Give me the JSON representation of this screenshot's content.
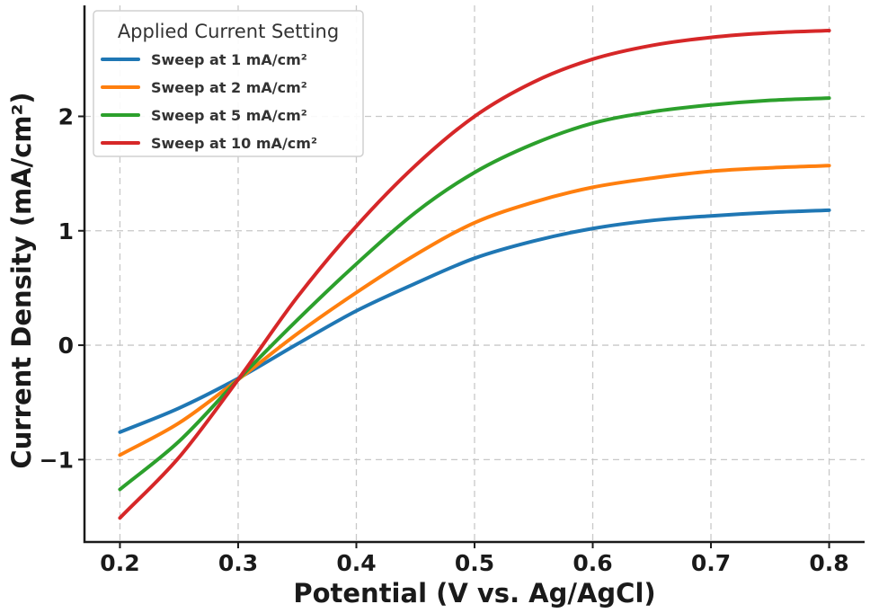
{
  "chart_data": {
    "type": "line",
    "title": "",
    "xlabel": "Potential (V vs. Ag/AgCl)",
    "ylabel": "Current Density (mA/cm²)",
    "xlim": [
      0.17,
      0.83
    ],
    "ylim": [
      -1.72,
      2.97
    ],
    "xticks": [
      0.2,
      0.3,
      0.4,
      0.5,
      0.6,
      0.7,
      0.8
    ],
    "xtick_labels": [
      "0.2",
      "0.3",
      "0.4",
      "0.5",
      "0.6",
      "0.7",
      "0.8"
    ],
    "yticks": [
      -1,
      0,
      1,
      2
    ],
    "ytick_labels": [
      "−1",
      "0",
      "1",
      "2"
    ],
    "grid": true,
    "legend": {
      "title": "Applied Current Setting",
      "placement": "top-left"
    },
    "x": [
      0.2,
      0.25,
      0.3,
      0.35,
      0.4,
      0.45,
      0.5,
      0.55,
      0.6,
      0.65,
      0.7,
      0.75,
      0.8
    ],
    "series": [
      {
        "name": "Sweep at 1 mA/cm²",
        "color": "#1f77b4",
        "values": [
          -0.76,
          -0.55,
          -0.29,
          0.01,
          0.3,
          0.54,
          0.76,
          0.91,
          1.02,
          1.09,
          1.13,
          1.16,
          1.18
        ]
      },
      {
        "name": "Sweep at 2 mA/cm²",
        "color": "#ff7f0e",
        "values": [
          -0.96,
          -0.68,
          -0.3,
          0.1,
          0.46,
          0.79,
          1.07,
          1.25,
          1.38,
          1.46,
          1.52,
          1.55,
          1.57
        ]
      },
      {
        "name": "Sweep at 5 mA/cm²",
        "color": "#2ca02c",
        "values": [
          -1.26,
          -0.84,
          -0.3,
          0.22,
          0.71,
          1.16,
          1.51,
          1.76,
          1.94,
          2.04,
          2.1,
          2.14,
          2.16
        ]
      },
      {
        "name": "Sweep at 10 mA/cm²",
        "color": "#d62728",
        "values": [
          -1.51,
          -0.98,
          -0.3,
          0.42,
          1.04,
          1.57,
          2.0,
          2.3,
          2.5,
          2.62,
          2.69,
          2.73,
          2.75
        ]
      }
    ]
  }
}
